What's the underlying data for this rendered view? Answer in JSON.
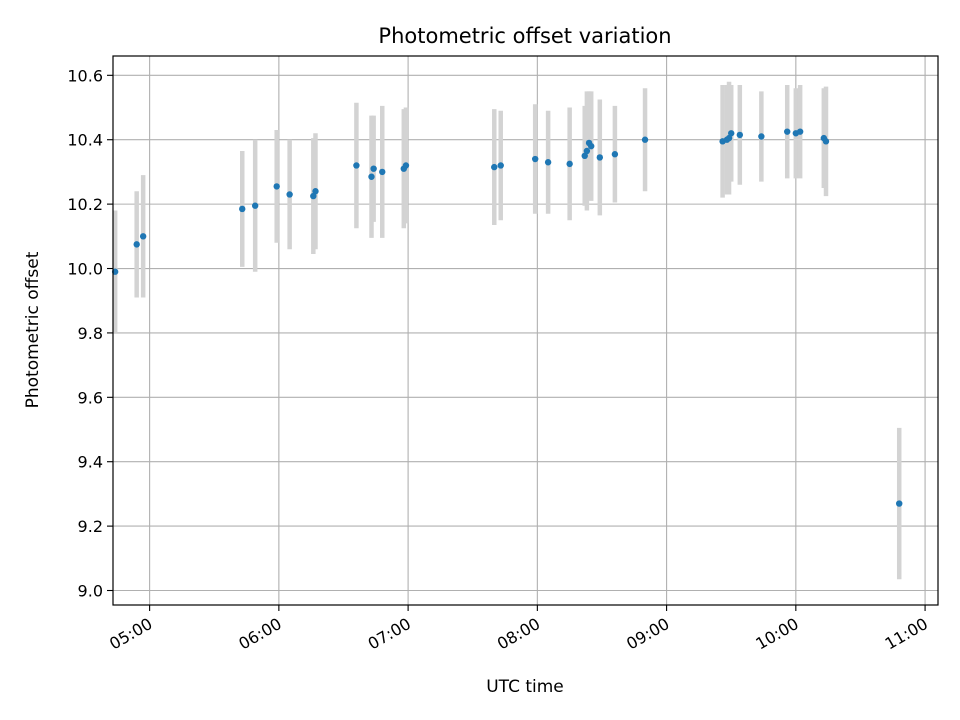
{
  "chart_data": {
    "type": "scatter",
    "title": "Photometric offset variation",
    "xlabel": "UTC time",
    "ylabel": "Photometric offset",
    "xlim": [
      "04:43",
      "11:06"
    ],
    "ylim": [
      8.955,
      10.66
    ],
    "x_ticks": [
      "05:00",
      "06:00",
      "07:00",
      "08:00",
      "09:00",
      "10:00",
      "11:00"
    ],
    "y_ticks": [
      "9.0",
      "9.2",
      "9.4",
      "9.6",
      "9.8",
      "10.0",
      "10.2",
      "10.4",
      "10.6"
    ],
    "grid": true,
    "colors": {
      "points": "#1f77b4",
      "errorbars": "#d3d3d3",
      "grid": "#b0b0b0"
    },
    "series": [
      {
        "x": [
          "04:44",
          "04:54",
          "04:57",
          "05:43",
          "05:49",
          "05:59",
          "06:05",
          "06:16",
          "06:17",
          "06:36",
          "06:43",
          "06:44",
          "06:48",
          "06:58",
          "06:59",
          "07:40",
          "07:43",
          "07:59",
          "08:05",
          "08:15",
          "08:22",
          "08:23",
          "08:24",
          "08:25",
          "08:29",
          "08:36",
          "08:50",
          "09:26",
          "09:28",
          "09:29",
          "09:30",
          "09:34",
          "09:44",
          "09:56",
          "10:00",
          "10:02",
          "10:13",
          "10:14"
        ],
        "y": [
          9.99,
          10.075,
          10.1,
          10.185,
          10.195,
          10.255,
          10.23,
          10.225,
          10.24,
          10.32,
          10.285,
          10.31,
          10.3,
          10.31,
          10.32,
          10.315,
          10.32,
          10.34,
          10.33,
          10.325,
          10.35,
          10.365,
          10.39,
          10.38,
          10.345,
          10.355,
          10.4,
          10.395,
          10.4,
          10.405,
          10.42,
          10.415,
          10.41,
          10.425,
          10.42,
          10.425,
          10.405,
          10.395
        ],
        "err": [
          0.19,
          0.165,
          0.19,
          0.18,
          0.205,
          0.175,
          0.17,
          0.18,
          0.18,
          0.195,
          0.19,
          0.165,
          0.205,
          0.185,
          0.18,
          0.18,
          0.17,
          0.17,
          0.16,
          0.175,
          0.155,
          0.185,
          0.16,
          0.17,
          0.18,
          0.15,
          0.16,
          0.175,
          0.17,
          0.175,
          0.15,
          0.155,
          0.14,
          0.145,
          0.14,
          0.145,
          0.155,
          0.17
        ]
      },
      {
        "x": [
          "10:48"
        ],
        "y": [
          9.27
        ],
        "err": [
          0.235
        ]
      }
    ]
  }
}
